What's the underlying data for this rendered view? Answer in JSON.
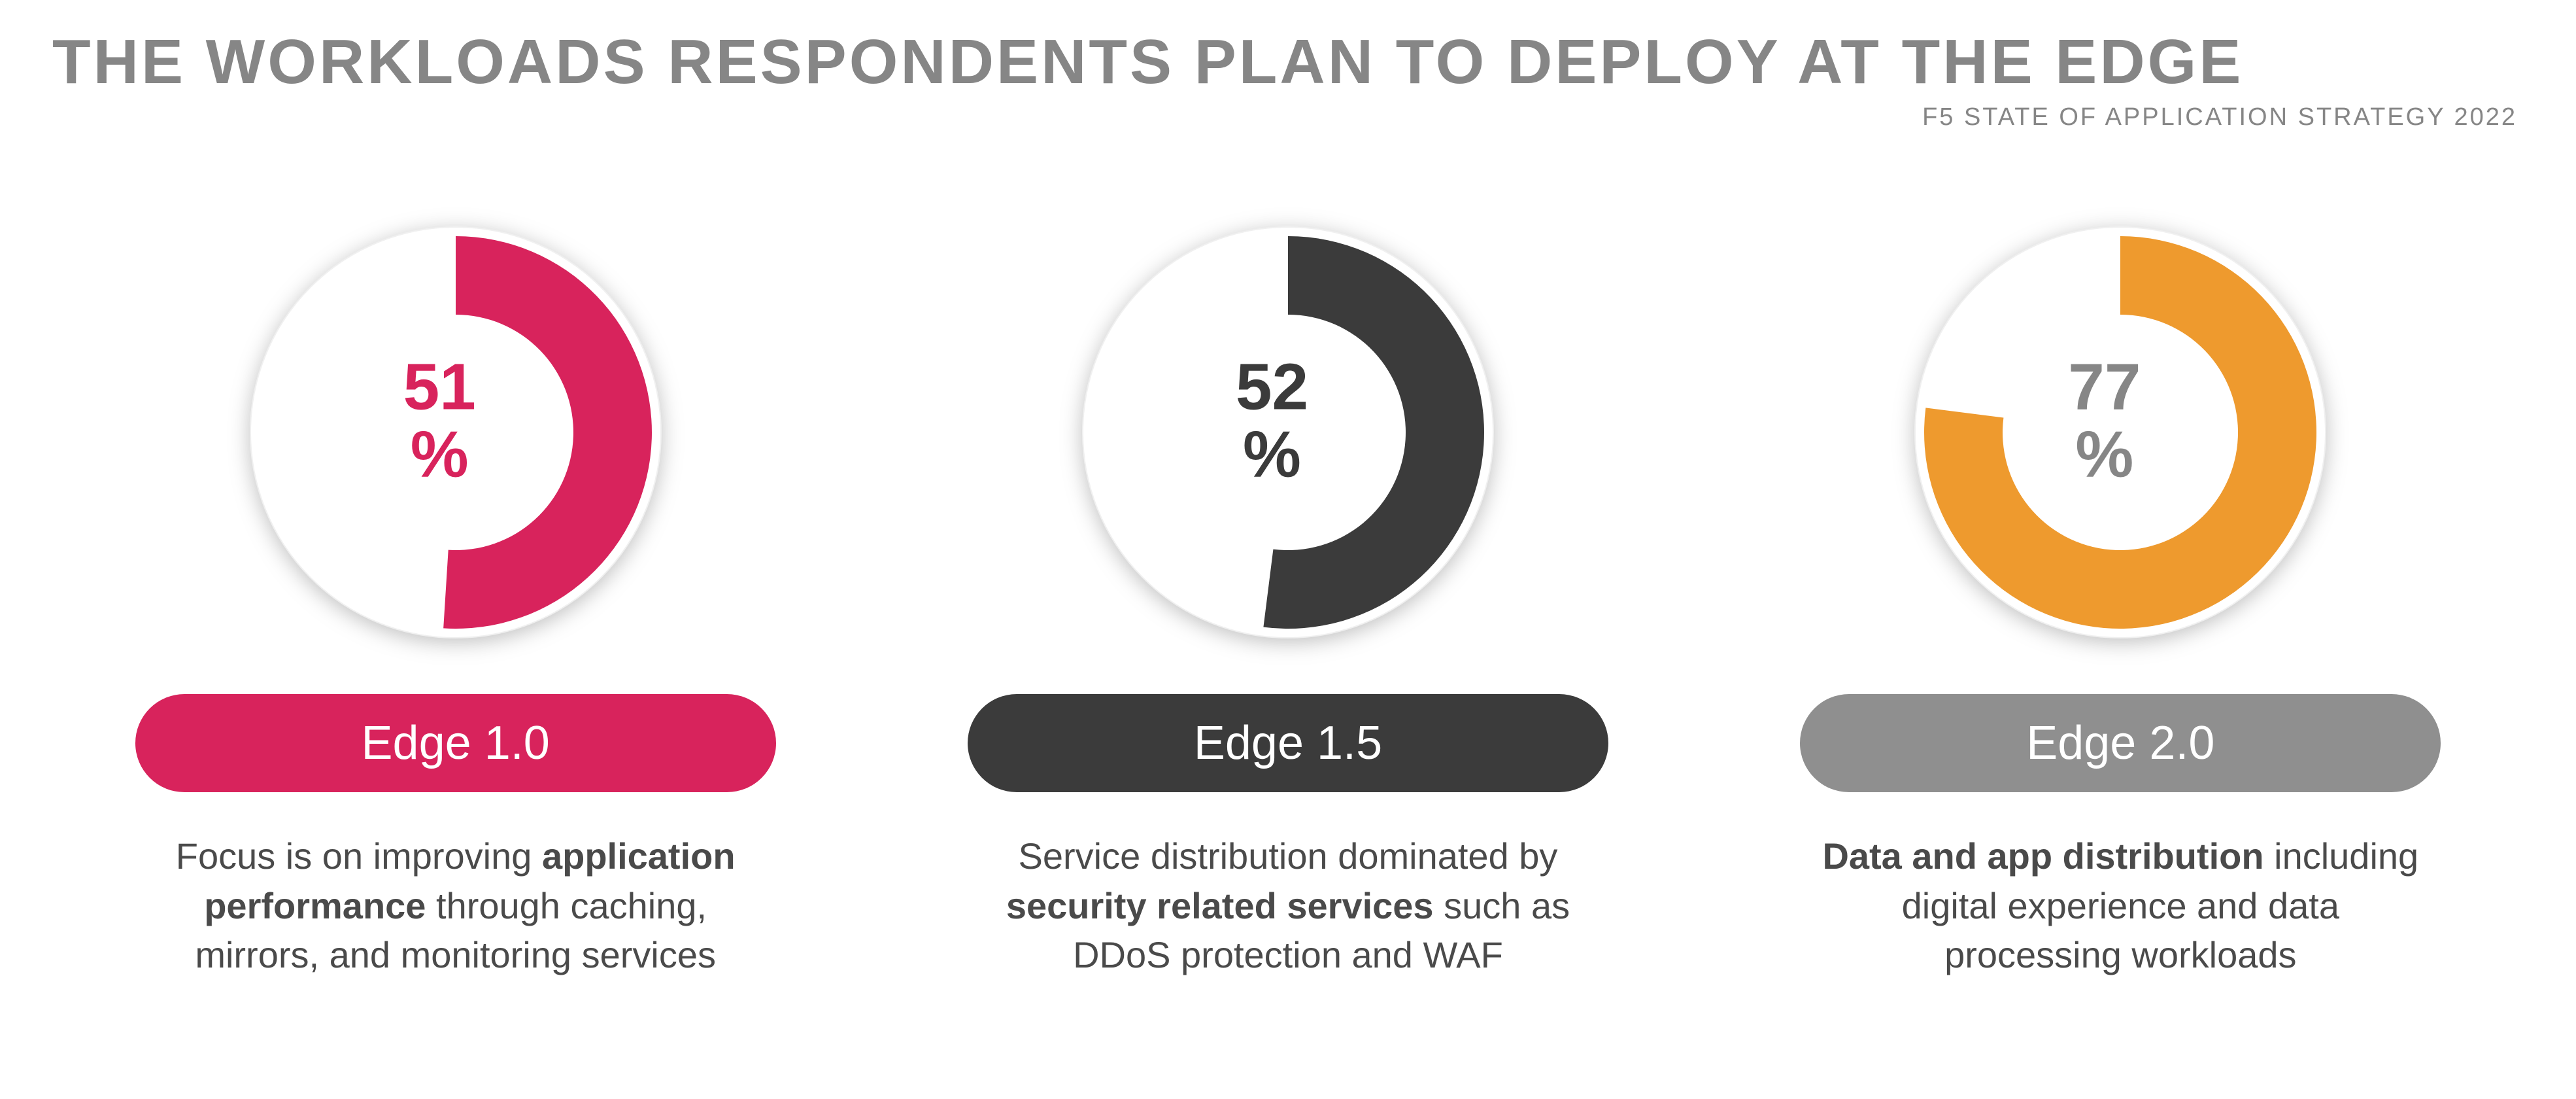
{
  "header": {
    "title": "THE WORKLOADS RESPONDENTS PLAN TO DEPLOY AT THE EDGE",
    "subtitle": "F5 STATE OF APPLICATION STRATEGY 2022",
    "title_color": "#868686",
    "subtitle_color": "#868686",
    "title_fontsize": 96,
    "subtitle_fontsize": 38
  },
  "donut_style": {
    "diameter": 640,
    "ring_outer_radius": 300,
    "ring_inner_radius": 180,
    "background_color": "#ffffff",
    "border_color": "#f0f0f0",
    "start_angle_deg": 0,
    "direction": "clockwise",
    "inner_text_fontsize": 100,
    "inner_text_fontweight": 700,
    "percent_symbol": "%"
  },
  "pill_style": {
    "border_radius": 999,
    "fontsize": 72,
    "fontweight": 300,
    "text_color": "#ffffff",
    "padding_v": 34
  },
  "desc_style": {
    "fontsize": 56,
    "color": "#4a4a4a",
    "line_height": 1.35,
    "fontweight_normal": 300,
    "fontweight_bold": 700
  },
  "panels": [
    {
      "id": "edge-1-0",
      "percentage": 51,
      "value_label": "51",
      "arc_color": "#d8235c",
      "value_text_color": "#d8235c",
      "pill_label": "Edge 1.0",
      "pill_color": "#d8235c",
      "desc_pre": "Focus is on improving ",
      "desc_bold": "application performance",
      "desc_post": " through caching, mirrors, and monitoring services"
    },
    {
      "id": "edge-1-5",
      "percentage": 52,
      "value_label": "52",
      "arc_color": "#3b3b3b",
      "value_text_color": "#3b3b3b",
      "pill_label": "Edge 1.5",
      "pill_color": "#3b3b3b",
      "desc_pre": "Service distribution dominated by ",
      "desc_bold": "security related services",
      "desc_post": " such as DDoS protection and WAF"
    },
    {
      "id": "edge-2-0",
      "percentage": 77,
      "value_label": "77",
      "arc_color": "#ee9a2e",
      "value_text_color": "#868686",
      "pill_label": "Edge 2.0",
      "pill_color": "#8f8f8f",
      "desc_pre": "",
      "desc_bold": "Data and app distribution",
      "desc_post": " including digital experience and data processing workloads"
    }
  ]
}
